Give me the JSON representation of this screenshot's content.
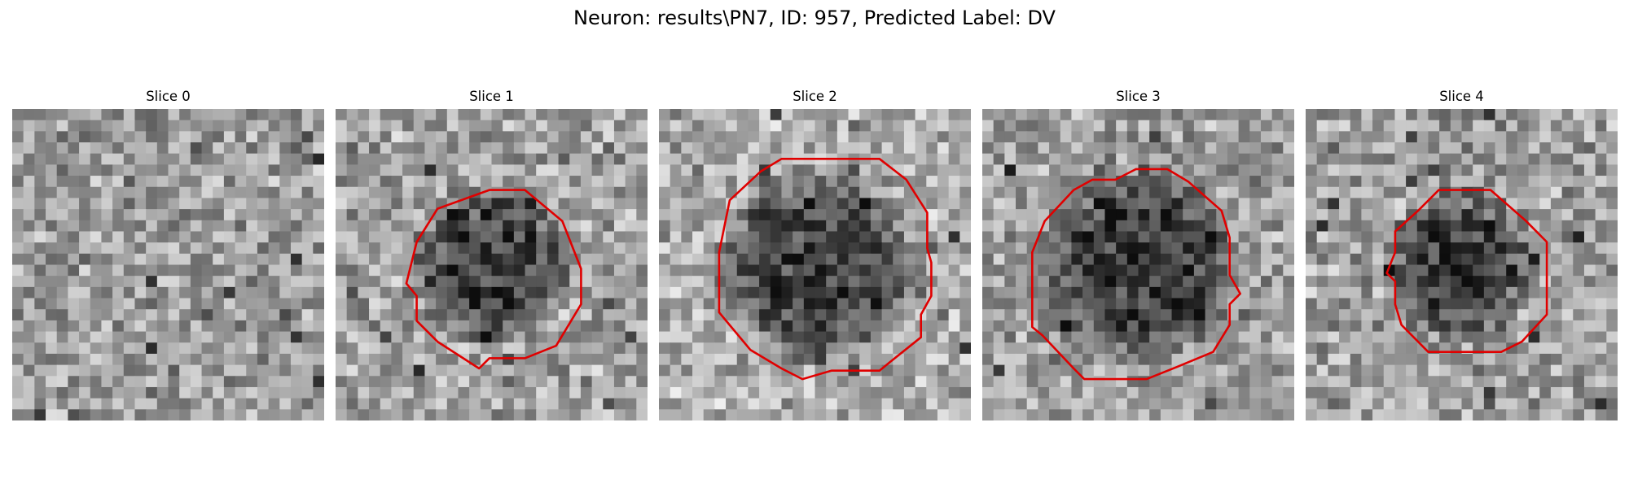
{
  "figure": {
    "title": "Neuron: results\\PN7, ID: 957, Predicted Label: DV"
  },
  "panels": [
    {
      "title": "Slice 0",
      "outline_color": "#e00000",
      "grid": 28,
      "seed": 11,
      "center_dark": 0.0,
      "blob_radius": 0.0,
      "base_gray": 0.62,
      "has_outline": false,
      "outline": []
    },
    {
      "title": "Slice 1",
      "outline_color": "#e00000",
      "grid": 28,
      "seed": 23,
      "center_dark": 0.38,
      "blob_radius": 0.27,
      "base_gray": 0.64,
      "has_outline": true,
      "outline": [
        [
          0.493,
          0.26
        ],
        [
          0.607,
          0.26
        ],
        [
          0.727,
          0.36
        ],
        [
          0.787,
          0.513
        ],
        [
          0.787,
          0.627
        ],
        [
          0.707,
          0.76
        ],
        [
          0.607,
          0.8
        ],
        [
          0.493,
          0.8
        ],
        [
          0.46,
          0.833
        ],
        [
          0.327,
          0.747
        ],
        [
          0.26,
          0.68
        ],
        [
          0.26,
          0.6
        ],
        [
          0.227,
          0.56
        ],
        [
          0.26,
          0.427
        ],
        [
          0.327,
          0.32
        ]
      ]
    },
    {
      "title": "Slice 2",
      "outline_color": "#e00000",
      "grid": 28,
      "seed": 37,
      "center_dark": 0.44,
      "blob_radius": 0.33,
      "base_gray": 0.68,
      "has_outline": true,
      "outline": [
        [
          0.393,
          0.16
        ],
        [
          0.707,
          0.16
        ],
        [
          0.793,
          0.227
        ],
        [
          0.86,
          0.333
        ],
        [
          0.86,
          0.447
        ],
        [
          0.873,
          0.493
        ],
        [
          0.873,
          0.6
        ],
        [
          0.84,
          0.66
        ],
        [
          0.84,
          0.733
        ],
        [
          0.74,
          0.813
        ],
        [
          0.707,
          0.84
        ],
        [
          0.553,
          0.84
        ],
        [
          0.46,
          0.867
        ],
        [
          0.393,
          0.833
        ],
        [
          0.293,
          0.773
        ],
        [
          0.193,
          0.653
        ],
        [
          0.193,
          0.46
        ],
        [
          0.227,
          0.293
        ],
        [
          0.327,
          0.2
        ]
      ]
    },
    {
      "title": "Slice 3",
      "outline_color": "#e00000",
      "grid": 28,
      "seed": 51,
      "center_dark": 0.4,
      "blob_radius": 0.33,
      "base_gray": 0.62,
      "has_outline": true,
      "outline": [
        [
          0.427,
          0.227
        ],
        [
          0.493,
          0.193
        ],
        [
          0.593,
          0.193
        ],
        [
          0.66,
          0.233
        ],
        [
          0.767,
          0.327
        ],
        [
          0.793,
          0.413
        ],
        [
          0.793,
          0.533
        ],
        [
          0.827,
          0.593
        ],
        [
          0.793,
          0.627
        ],
        [
          0.793,
          0.693
        ],
        [
          0.74,
          0.78
        ],
        [
          0.627,
          0.827
        ],
        [
          0.527,
          0.867
        ],
        [
          0.327,
          0.867
        ],
        [
          0.293,
          0.833
        ],
        [
          0.193,
          0.727
        ],
        [
          0.16,
          0.7
        ],
        [
          0.16,
          0.46
        ],
        [
          0.2,
          0.36
        ],
        [
          0.293,
          0.26
        ],
        [
          0.353,
          0.227
        ]
      ]
    },
    {
      "title": "Slice 4",
      "outline_color": "#e00000",
      "grid": 28,
      "seed": 67,
      "center_dark": 0.36,
      "blob_radius": 0.26,
      "base_gray": 0.63,
      "has_outline": true,
      "outline": [
        [
          0.427,
          0.26
        ],
        [
          0.593,
          0.26
        ],
        [
          0.707,
          0.36
        ],
        [
          0.773,
          0.427
        ],
        [
          0.773,
          0.66
        ],
        [
          0.693,
          0.747
        ],
        [
          0.627,
          0.78
        ],
        [
          0.393,
          0.78
        ],
        [
          0.307,
          0.693
        ],
        [
          0.287,
          0.627
        ],
        [
          0.287,
          0.553
        ],
        [
          0.26,
          0.527
        ],
        [
          0.287,
          0.46
        ],
        [
          0.287,
          0.393
        ],
        [
          0.36,
          0.327
        ]
      ]
    }
  ]
}
